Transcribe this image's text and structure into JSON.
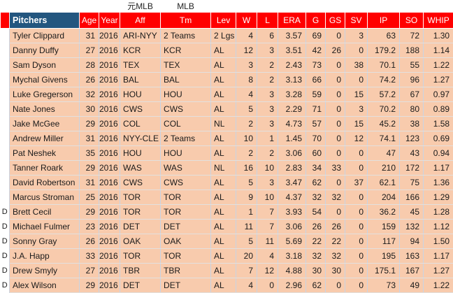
{
  "bands": {
    "former_mlb": "元MLB",
    "mlb": "MLB"
  },
  "columns": [
    "Pitchers",
    "Age",
    "Year",
    "Aff",
    "Tm",
    "Lev",
    "W",
    "L",
    "ERA",
    "G",
    "GS",
    "SV",
    "IP",
    "SO",
    "WHIP"
  ],
  "colors": {
    "header_blue": "#23567f",
    "header_red": "#ff0000",
    "row_bg": "#f8cbad",
    "band_former_mlb_bg": "#fff2cc",
    "band_mlb_bg": "#f4be96"
  },
  "rows": [
    {
      "marker": "",
      "cells": [
        "Tyler Clippard",
        "31",
        "2016",
        "ARI-NYY",
        "2 Teams",
        "2 Lgs",
        "4",
        "6",
        "3.57",
        "69",
        "0",
        "3",
        "63",
        "72",
        "1.30"
      ]
    },
    {
      "marker": "",
      "cells": [
        "Danny Duffy",
        "27",
        "2016",
        "KCR",
        "KCR",
        "AL",
        "12",
        "3",
        "3.51",
        "42",
        "26",
        "0",
        "179.2",
        "188",
        "1.14"
      ]
    },
    {
      "marker": "",
      "cells": [
        "Sam Dyson",
        "28",
        "2016",
        "TEX",
        "TEX",
        "AL",
        "3",
        "2",
        "2.43",
        "73",
        "0",
        "38",
        "70.1",
        "55",
        "1.22"
      ]
    },
    {
      "marker": "",
      "cells": [
        "Mychal Givens",
        "26",
        "2016",
        "BAL",
        "BAL",
        "AL",
        "8",
        "2",
        "3.13",
        "66",
        "0",
        "0",
        "74.2",
        "96",
        "1.27"
      ]
    },
    {
      "marker": "",
      "cells": [
        "Luke Gregerson",
        "32",
        "2016",
        "HOU",
        "HOU",
        "AL",
        "4",
        "3",
        "3.28",
        "59",
        "0",
        "15",
        "57.2",
        "67",
        "0.97"
      ]
    },
    {
      "marker": "",
      "cells": [
        "Nate Jones",
        "30",
        "2016",
        "CWS",
        "CWS",
        "AL",
        "5",
        "3",
        "2.29",
        "71",
        "0",
        "3",
        "70.2",
        "80",
        "0.89"
      ]
    },
    {
      "marker": "",
      "cells": [
        "Jake McGee",
        "29",
        "2016",
        "COL",
        "COL",
        "NL",
        "2",
        "3",
        "4.73",
        "57",
        "0",
        "15",
        "45.2",
        "38",
        "1.58"
      ]
    },
    {
      "marker": "",
      "cells": [
        "Andrew Miller",
        "31",
        "2016",
        "NYY-CLE",
        "2 Teams",
        "AL",
        "10",
        "1",
        "1.45",
        "70",
        "0",
        "12",
        "74.1",
        "123",
        "0.69"
      ]
    },
    {
      "marker": "",
      "cells": [
        "Pat Neshek",
        "35",
        "2016",
        "HOU",
        "HOU",
        "AL",
        "2",
        "2",
        "3.06",
        "60",
        "0",
        "0",
        "47",
        "43",
        "0.94"
      ]
    },
    {
      "marker": "",
      "cells": [
        "Tanner Roark",
        "29",
        "2016",
        "WAS",
        "WAS",
        "NL",
        "16",
        "10",
        "2.83",
        "34",
        "33",
        "0",
        "210",
        "172",
        "1.17"
      ]
    },
    {
      "marker": "",
      "cells": [
        "David Robertson",
        "31",
        "2016",
        "CWS",
        "CWS",
        "AL",
        "5",
        "3",
        "3.47",
        "62",
        "0",
        "37",
        "62.1",
        "75",
        "1.36"
      ]
    },
    {
      "marker": "",
      "cells": [
        "Marcus Stroman",
        "25",
        "2016",
        "TOR",
        "TOR",
        "AL",
        "9",
        "10",
        "4.37",
        "32",
        "32",
        "0",
        "204",
        "166",
        "1.29"
      ]
    },
    {
      "marker": "D",
      "cells": [
        "Brett Cecil",
        "29",
        "2016",
        "TOR",
        "TOR",
        "AL",
        "1",
        "7",
        "3.93",
        "54",
        "0",
        "0",
        "36.2",
        "45",
        "1.28"
      ]
    },
    {
      "marker": "D",
      "cells": [
        "Michael Fulmer",
        "23",
        "2016",
        "DET",
        "DET",
        "AL",
        "11",
        "7",
        "3.06",
        "26",
        "26",
        "0",
        "159",
        "132",
        "1.12"
      ]
    },
    {
      "marker": "D",
      "cells": [
        "Sonny Gray",
        "26",
        "2016",
        "OAK",
        "OAK",
        "AL",
        "5",
        "11",
        "5.69",
        "22",
        "22",
        "0",
        "117",
        "94",
        "1.50"
      ]
    },
    {
      "marker": "D",
      "cells": [
        "J.A. Happ",
        "33",
        "2016",
        "TOR",
        "TOR",
        "AL",
        "20",
        "4",
        "3.18",
        "32",
        "32",
        "0",
        "195",
        "163",
        "1.17"
      ]
    },
    {
      "marker": "D",
      "cells": [
        "Drew Smyly",
        "27",
        "2016",
        "TBR",
        "TBR",
        "AL",
        "7",
        "12",
        "4.88",
        "30",
        "30",
        "0",
        "175.1",
        "167",
        "1.27"
      ]
    },
    {
      "marker": "D",
      "cells": [
        "Alex Wilson",
        "29",
        "2016",
        "DET",
        "DET",
        "AL",
        "4",
        "0",
        "2.96",
        "62",
        "0",
        "0",
        "73",
        "49",
        "1.22"
      ]
    }
  ]
}
